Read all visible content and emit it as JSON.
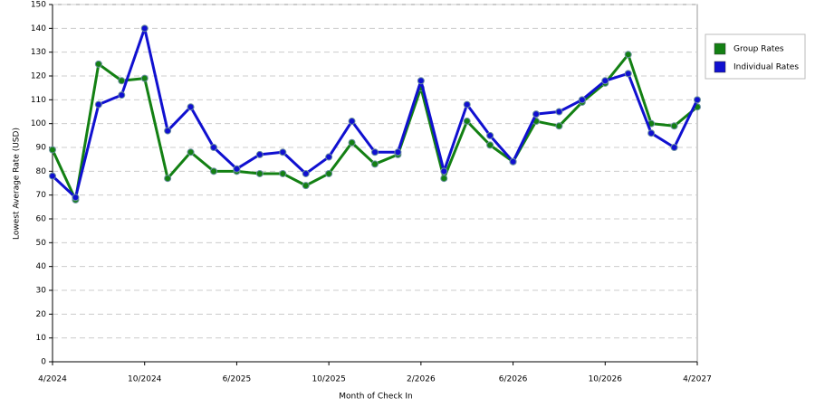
{
  "chart_data": {
    "type": "line",
    "y_label": "Lowest Average Rate (USD)",
    "x_label": "Month of Check In",
    "categories": [
      "4/2024",
      null,
      null,
      null,
      "10/2024",
      null,
      null,
      null,
      "6/2025",
      null,
      null,
      null,
      "10/2025",
      null,
      null,
      null,
      "2/2026",
      null,
      null,
      null,
      "6/2026",
      null,
      null,
      null,
      "10/2026",
      null,
      null,
      null,
      "4/2027"
    ],
    "series": [
      {
        "name": "Group Rates",
        "color": "#138013",
        "values": [
          89,
          68,
          125,
          118,
          119,
          77,
          88,
          80,
          80,
          79,
          79,
          74,
          79,
          92,
          83,
          87,
          115,
          77,
          101,
          91,
          84,
          101,
          99,
          109,
          117,
          129,
          100,
          99,
          107
        ]
      },
      {
        "name": "Individual Rates",
        "color": "#1010d0",
        "values": [
          78,
          69,
          108,
          112,
          140,
          97,
          107,
          90,
          81,
          87,
          88,
          79,
          86,
          101,
          88,
          88,
          118,
          80,
          108,
          95,
          84,
          104,
          105,
          110,
          118,
          121,
          96,
          90,
          110
        ]
      }
    ],
    "ylim": [
      0,
      150
    ],
    "yticks": [
      0,
      10,
      20,
      30,
      40,
      50,
      60,
      70,
      80,
      90,
      100,
      110,
      120,
      130,
      140,
      150
    ],
    "grid": true,
    "legend": "right"
  }
}
